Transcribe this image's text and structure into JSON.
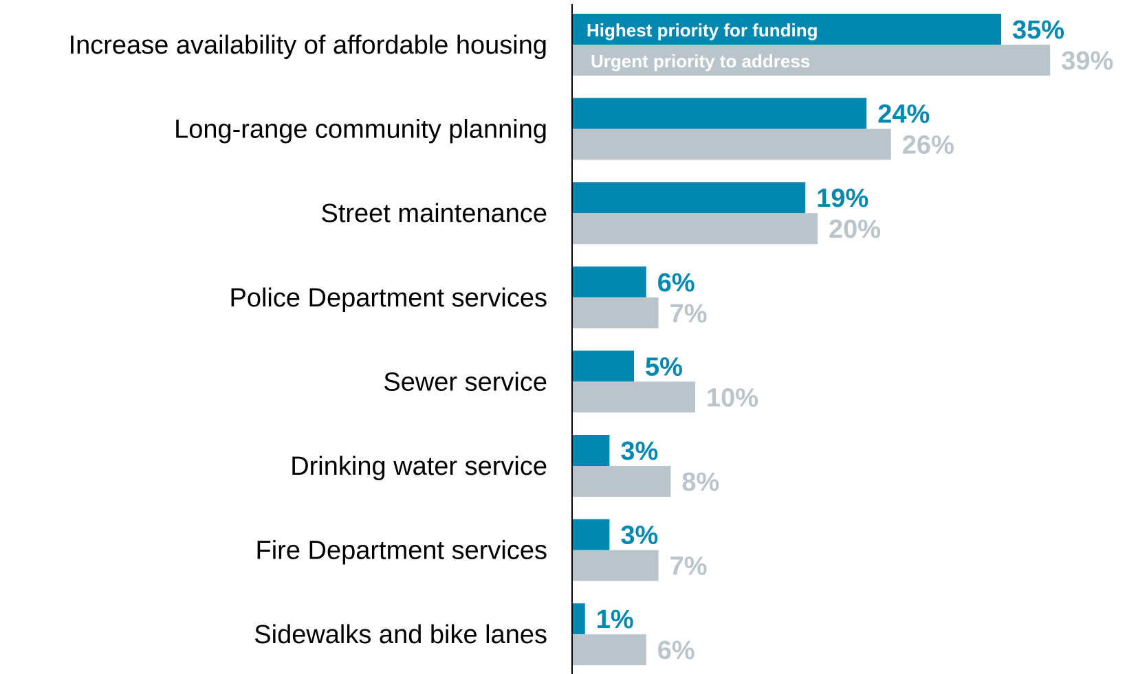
{
  "chart_data": {
    "type": "bar",
    "orientation": "horizontal",
    "categories": [
      "Increase availability of affordable housing",
      "Long-range community planning",
      "Street maintenance",
      "Police Department services",
      "Sewer service",
      "Drinking water service",
      "Fire Department services",
      "Sidewalks and bike lanes"
    ],
    "series": [
      {
        "name": "Highest priority for funding",
        "values": [
          35,
          24,
          19,
          6,
          5,
          3,
          3,
          1
        ],
        "labels": [
          "35%",
          "24%",
          "19%",
          "6%",
          "5%",
          "3%",
          "3%",
          "1%"
        ],
        "color": "#0088b0"
      },
      {
        "name": "Urgent priority to address",
        "values": [
          39,
          26,
          20,
          7,
          10,
          8,
          7,
          6
        ],
        "labels": [
          "39%",
          "26%",
          "20%",
          "7%",
          "10%",
          "8%",
          "7%",
          "6%"
        ],
        "color": "#bac5cb"
      }
    ],
    "legend": "inside-first-bars",
    "grid": false,
    "xlim": [
      0,
      39
    ]
  }
}
